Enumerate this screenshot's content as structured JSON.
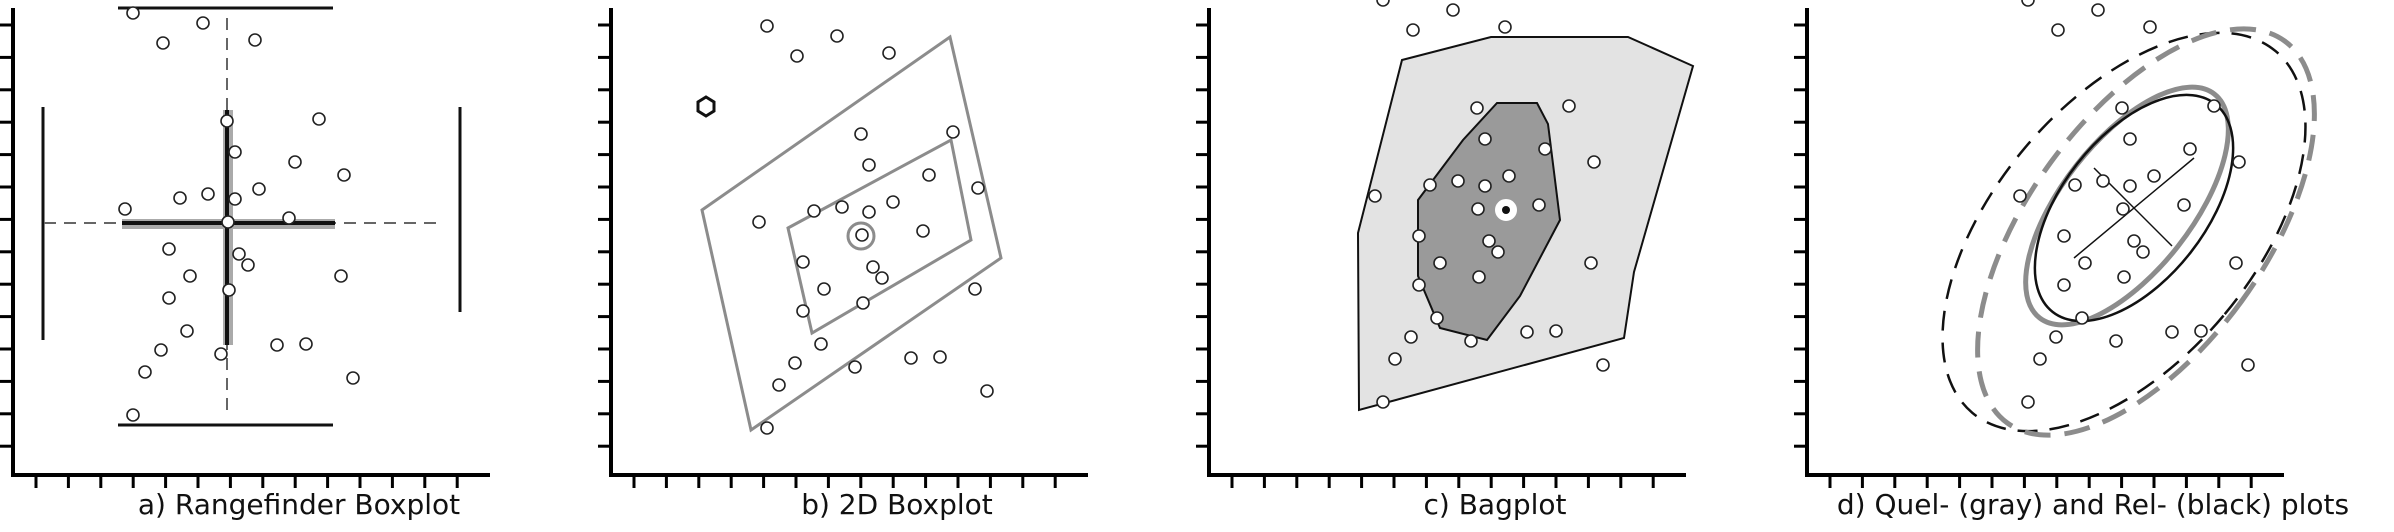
{
  "captions": {
    "a": "a) Rangefinder Boxplot",
    "b": "b) 2D Boxplot",
    "c": "c) Bagplot",
    "d": "d) Quel- (gray) and Rel- (black) plots"
  },
  "colors": {
    "ink": "#111111",
    "gray_line": "#8c8c8c",
    "bag_fill": "#9a9a9a",
    "fence_fill": "#e3e3e3"
  },
  "points": [
    [
      147,
      -247
    ],
    [
      56,
      -210
    ],
    [
      126,
      -200
    ],
    [
      178,
      -183
    ],
    [
      86,
      -180
    ],
    [
      242,
      -104
    ],
    [
      150,
      -102
    ],
    [
      158,
      -71
    ],
    [
      218,
      -61
    ],
    [
      267,
      -48
    ],
    [
      182,
      -34
    ],
    [
      131,
      -29
    ],
    [
      103,
      -25
    ],
    [
      158,
      -24
    ],
    [
      48,
      -14
    ],
    [
      151,
      -1
    ],
    [
      212,
      -5
    ],
    [
      92,
      26
    ],
    [
      162,
      31
    ],
    [
      171,
      42
    ],
    [
      264,
      53
    ],
    [
      113,
      53
    ],
    [
      92,
      75
    ],
    [
      152,
      67
    ],
    [
      110,
      108
    ],
    [
      84,
      127
    ],
    [
      144,
      131
    ],
    [
      229,
      121
    ],
    [
      68,
      149
    ],
    [
      276,
      155
    ],
    [
      56,
      192
    ],
    [
      200,
      122
    ]
  ],
  "panels": {
    "a": {
      "caption_key": "a"
    },
    "b": {
      "caption_key": "b"
    },
    "c": {
      "caption_key": "c"
    },
    "d": {
      "caption_key": "d"
    }
  }
}
